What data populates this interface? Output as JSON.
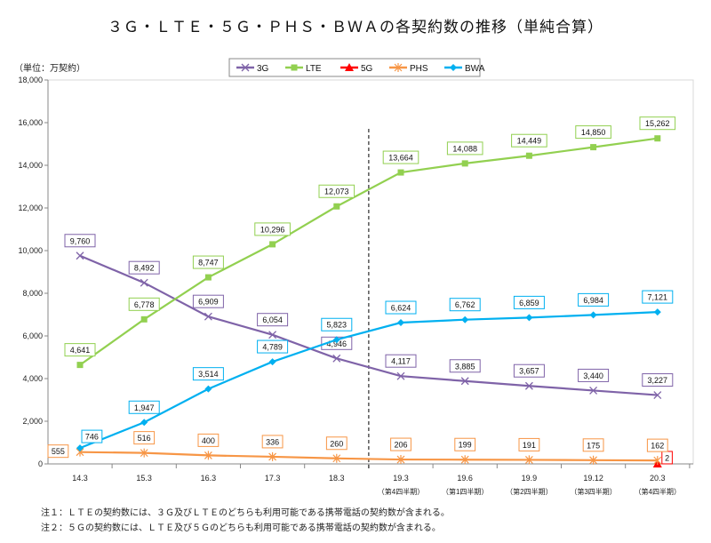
{
  "chart_data": {
    "type": "line",
    "title": "３Ｇ・ＬＴＥ・５Ｇ・ＰＨＳ・ＢＷＡの各契約数の推移（単純合算）",
    "unit_label": "（単位：万契約）",
    "categories": [
      "14.3",
      "15.3",
      "16.3",
      "17.3",
      "18.3",
      "19.3",
      "19.6",
      "19.9",
      "19.12",
      "20.3"
    ],
    "sub_labels": [
      "",
      "",
      "",
      "",
      "",
      "（第4四半期）",
      "（第1四半期）",
      "（第2四半期）",
      "（第3四半期）",
      "（第4四半期）"
    ],
    "ylim": [
      0,
      18000
    ],
    "yticks": [
      "0",
      "2,000",
      "4,000",
      "6,000",
      "8,000",
      "10,000",
      "12,000",
      "14,000",
      "16,000",
      "18,000"
    ],
    "legend_position": "top-center",
    "divider_after_category": "18.3",
    "series": [
      {
        "name": "3G",
        "color": "#7f63a8",
        "marker": "x",
        "values": [
          9760,
          8492,
          6909,
          6054,
          4946,
          4117,
          3885,
          3657,
          3440,
          3227
        ],
        "labels": [
          "9,760",
          "8,492",
          "6,909",
          "6,054",
          "4,946",
          "4,117",
          "3,885",
          "3,657",
          "3,440",
          "3,227"
        ]
      },
      {
        "name": "LTE",
        "color": "#92d050",
        "marker": "square",
        "values": [
          4641,
          6778,
          8747,
          10296,
          12073,
          13664,
          14088,
          14449,
          14850,
          15262
        ],
        "labels": [
          "4,641",
          "6,778",
          "8,747",
          "10,296",
          "12,073",
          "13,664",
          "14,088",
          "14,449",
          "14,850",
          "15,262"
        ]
      },
      {
        "name": "5G",
        "color": "#ff0000",
        "marker": "triangle",
        "values": [
          null,
          null,
          null,
          null,
          null,
          null,
          null,
          null,
          null,
          2
        ],
        "labels": [
          "",
          "",
          "",
          "",
          "",
          "",
          "",
          "",
          "",
          "2"
        ]
      },
      {
        "name": "PHS",
        "color": "#f79646",
        "marker": "star",
        "values": [
          555,
          516,
          400,
          336,
          260,
          206,
          199,
          191,
          175,
          162
        ],
        "labels": [
          "555",
          "516",
          "400",
          "336",
          "260",
          "206",
          "199",
          "191",
          "175",
          "162"
        ]
      },
      {
        "name": "BWA",
        "color": "#00b0f0",
        "marker": "diamond",
        "values": [
          746,
          1947,
          3514,
          4789,
          5823,
          6624,
          6762,
          6859,
          6984,
          7121
        ],
        "labels": [
          "746",
          "1,947",
          "3,514",
          "4,789",
          "5,823",
          "6,624",
          "6,762",
          "6,859",
          "6,984",
          "7,121"
        ]
      }
    ]
  },
  "notes": [
    "注１：ＬＴＥの契約数には、３Ｇ及びＬＴＥのどちらも利用可能である携帯電話の契約数が含まれる。",
    "注２：５Ｇの契約数には、ＬＴＥ及び５Ｇのどちらも利用可能である携帯電話の契約数が含まれる。"
  ]
}
